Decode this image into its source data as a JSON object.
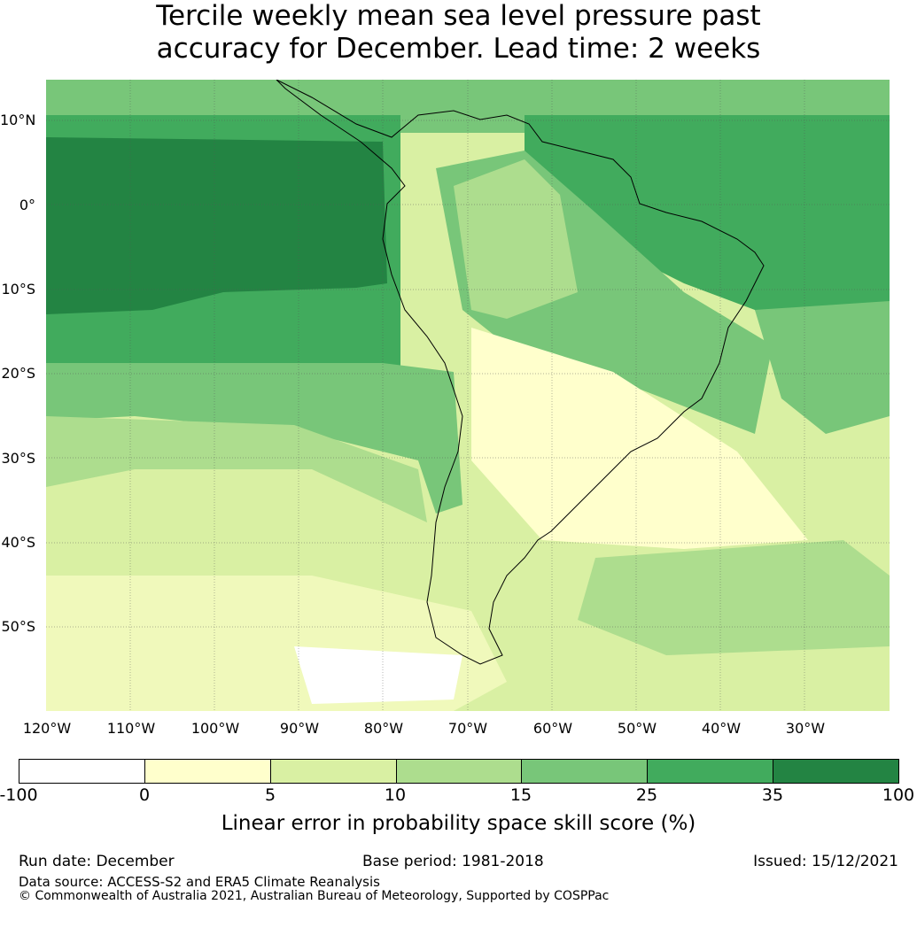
{
  "title": {
    "line1": "Tercile weekly mean sea level pressure past",
    "line2": "accuracy for December. Lead time: 2 weeks"
  },
  "lat_labels": [
    "10°N",
    "0°",
    "10°S",
    "20°S",
    "30°S",
    "40°S",
    "50°S"
  ],
  "lon_labels": [
    "120°W",
    "110°W",
    "100°W",
    "90°W",
    "80°W",
    "70°W",
    "60°W",
    "50°W",
    "40°W",
    "30°W"
  ],
  "colorbar": {
    "colors": [
      "#ffffff",
      "#ffffcc",
      "#d9f0a3",
      "#addd8e",
      "#78c679",
      "#41ab5d",
      "#238443"
    ],
    "ticks": [
      "-100",
      "0",
      "5",
      "10",
      "15",
      "25",
      "35",
      "100"
    ],
    "label": "Linear error in probability space skill score (%)"
  },
  "footer": {
    "run_date": "Run date: December",
    "base_period": "Base period: 1981-2018",
    "issued": "Issued: 15/12/2021",
    "data_source": "Data source: ACCESS-S2 and ERA5 Climate Reanalysis",
    "copyright": "© Commonwealth of Australia 2021, Australian Bureau of Meteorology, Supported by COSPPac"
  }
}
